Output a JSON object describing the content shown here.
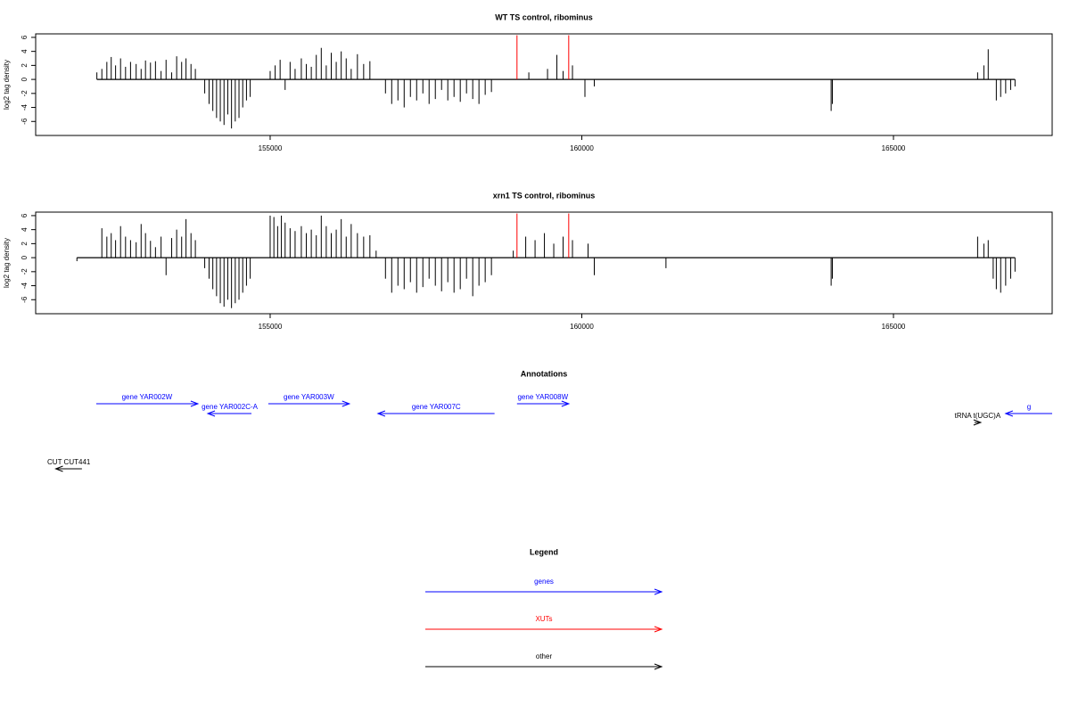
{
  "chart_data": [
    {
      "type": "needle",
      "title": "WT TS control, ribominus",
      "y_label": "log2 tag density",
      "xlim": [
        151238,
        167546
      ],
      "ylim": [
        -8,
        6.5
      ],
      "xticks": [
        155000,
        160000,
        165000
      ],
      "yticks": [
        -6,
        -4,
        -2,
        0,
        2,
        4,
        6
      ],
      "series": [
        {
          "color": "#000000",
          "x": [
            152220,
            152300,
            152380,
            152450,
            152520,
            152600,
            152680,
            152760,
            152850,
            152930,
            153000,
            153080,
            153160,
            153250,
            153330,
            153420,
            153500,
            153580,
            153650,
            153730,
            153800,
            153950,
            154020,
            154080,
            154140,
            154200,
            154260,
            154320,
            154380,
            154440,
            154500,
            154560,
            154620,
            154680,
            155000,
            155080,
            155160,
            155240,
            155320,
            155400,
            155500,
            155580,
            155660,
            155740,
            155820,
            155900,
            155980,
            156060,
            156140,
            156220,
            156300,
            156400,
            156500,
            156600,
            156850,
            156950,
            157050,
            157150,
            157250,
            157350,
            157450,
            157550,
            157650,
            157750,
            157850,
            157950,
            158050,
            158150,
            158250,
            158350,
            158450,
            158550,
            159150,
            159450,
            159600,
            159700,
            159850,
            160050,
            160200,
            164000,
            164020,
            166350,
            166450,
            166520,
            166650,
            166720,
            166800,
            166880,
            166950
          ],
          "values": [
            1,
            1.5,
            2.5,
            3.2,
            2,
            3,
            1.8,
            2.5,
            2.2,
            1.5,
            2.7,
            2.4,
            2.6,
            1.2,
            2.8,
            1,
            3.3,
            2.5,
            3,
            2.2,
            1.5,
            -2,
            -3.5,
            -4.5,
            -5.5,
            -6,
            -6.5,
            -5,
            -7,
            -6,
            -5.5,
            -4,
            -3,
            -2.5,
            1.2,
            2,
            2.8,
            -1.5,
            2.5,
            1.5,
            3,
            2.2,
            1.8,
            3.5,
            4.5,
            2,
            3.8,
            2.5,
            4,
            3,
            1.5,
            3.6,
            2.2,
            2.6,
            -2,
            -3.5,
            -3,
            -4,
            -2.5,
            -3,
            -2,
            -3.5,
            -2.8,
            -1.5,
            -3,
            -2.5,
            -3.2,
            -2,
            -2.8,
            -3.5,
            -2.2,
            -1.8,
            1,
            1.5,
            3.5,
            1.2,
            2,
            -2.5,
            -1,
            -4.5,
            -3.5,
            1,
            2,
            4.3,
            -3,
            -2.5,
            -2,
            -1.5,
            -1
          ]
        },
        {
          "color": "#ff0000",
          "x": [
            158960,
            159790
          ],
          "values": [
            6.3,
            6.3
          ]
        }
      ]
    },
    {
      "type": "needle",
      "title": "xrn1 TS control, ribominus",
      "y_label": "log2 tag density",
      "xlim": [
        151238,
        167546
      ],
      "ylim": [
        -8,
        6.5
      ],
      "xticks": [
        155000,
        160000,
        165000
      ],
      "yticks": [
        -6,
        -4,
        -2,
        0,
        2,
        4,
        6
      ],
      "series": [
        {
          "color": "#000000",
          "x": [
            151900,
            152300,
            152380,
            152450,
            152520,
            152600,
            152680,
            152760,
            152850,
            152930,
            153000,
            153080,
            153160,
            153250,
            153330,
            153420,
            153500,
            153580,
            153650,
            153730,
            153800,
            153950,
            154020,
            154080,
            154140,
            154200,
            154260,
            154320,
            154380,
            154440,
            154500,
            154560,
            154620,
            154680,
            155000,
            155060,
            155120,
            155180,
            155240,
            155320,
            155400,
            155500,
            155580,
            155660,
            155740,
            155820,
            155900,
            155980,
            156060,
            156140,
            156220,
            156300,
            156400,
            156500,
            156600,
            156700,
            156850,
            156950,
            157050,
            157150,
            157250,
            157350,
            157450,
            157550,
            157650,
            157750,
            157850,
            157950,
            158050,
            158150,
            158250,
            158350,
            158450,
            158550,
            158900,
            159100,
            159250,
            159400,
            159550,
            159700,
            159850,
            160100,
            160200,
            161350,
            164000,
            164020,
            166350,
            166450,
            166520,
            166600,
            166650,
            166720,
            166800,
            166880,
            166950
          ],
          "values": [
            -0.5,
            4.2,
            3,
            3.5,
            2.5,
            4.5,
            3,
            2.5,
            2.2,
            4.8,
            3.5,
            2.4,
            1.5,
            3,
            -2.5,
            2.8,
            4,
            3,
            5.5,
            3.5,
            2.5,
            -1.5,
            -3,
            -4.5,
            -5.5,
            -6.5,
            -7,
            -6,
            -7.2,
            -6.5,
            -6,
            -5,
            -4,
            -3,
            6,
            5.8,
            4.5,
            6,
            5,
            4.2,
            3.8,
            4.5,
            3.5,
            4,
            3.2,
            6,
            4.5,
            3.5,
            4,
            5.5,
            3,
            4.8,
            3.5,
            3,
            3.2,
            1,
            -3,
            -5,
            -4,
            -4.5,
            -3.5,
            -5,
            -4.2,
            -3,
            -4,
            -4.8,
            -3.5,
            -5,
            -4.5,
            -3,
            -5.5,
            -4,
            -3.5,
            -2.5,
            1,
            3,
            2.5,
            3.5,
            2,
            3,
            2.5,
            2,
            -2.5,
            -1.5,
            -4,
            -3,
            3,
            2,
            2.5,
            -3,
            -4.5,
            -5,
            -4,
            -3,
            -2
          ]
        },
        {
          "color": "#ff0000",
          "x": [
            158960,
            159790
          ],
          "values": [
            6.3,
            6.3
          ]
        }
      ]
    }
  ],
  "annotations": {
    "title": "Annotations",
    "features": [
      {
        "label": "gene YAR002W",
        "start": 152210,
        "end": 153840,
        "strand": "+",
        "color": "#0000ff"
      },
      {
        "label": "gene YAR002C-A",
        "start": 154000,
        "end": 154700,
        "strand": "-",
        "color": "#0000ff"
      },
      {
        "label": "gene YAR003W",
        "start": 154970,
        "end": 156270,
        "strand": "+",
        "color": "#0000ff"
      },
      {
        "label": "gene YAR007C",
        "start": 156730,
        "end": 158600,
        "strand": "-",
        "color": "#0000ff"
      },
      {
        "label": "gene YAR008W",
        "start": 158960,
        "end": 159790,
        "strand": "+",
        "color": "#0000ff"
      },
      {
        "label": "tRNA t(UGC)A",
        "start": 166300,
        "end": 166400,
        "strand": "+",
        "color": "#000000"
      },
      {
        "label": "g",
        "start": 166800,
        "end": 167546,
        "strand": "-",
        "color": "#0000ff"
      },
      {
        "label": "CUT CUT441",
        "start": 151560,
        "end": 151980,
        "strand": "-",
        "color": "#000000"
      }
    ]
  },
  "legend": {
    "title": "Legend",
    "items": [
      {
        "label": "genes",
        "color": "#0000ff"
      },
      {
        "label": "XUTs",
        "color": "#ff0000"
      },
      {
        "label": "other",
        "color": "#000000"
      }
    ]
  }
}
